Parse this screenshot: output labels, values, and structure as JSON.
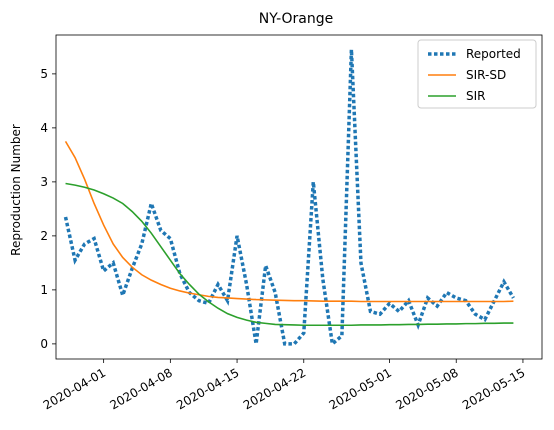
{
  "chart_data": {
    "type": "line",
    "title": "NY-Orange",
    "xlabel": "",
    "ylabel": "Reproduction Number",
    "x_start": "2020-03-28",
    "xlim": [
      "2020-03-27",
      "2020-05-17"
    ],
    "ylim": [
      -0.28,
      5.72
    ],
    "grid": false,
    "legend_position": "top-right",
    "x_ticks": [
      "2020-04-01",
      "2020-04-08",
      "2020-04-15",
      "2020-04-22",
      "2020-05-01",
      "2020-05-08",
      "2020-05-15"
    ],
    "y_ticks": [
      0,
      1,
      2,
      3,
      4,
      5
    ],
    "series": [
      {
        "name": "Reported",
        "color": "#1f77b4",
        "style": "dotted",
        "values": [
          2.35,
          1.55,
          1.85,
          1.95,
          1.35,
          1.5,
          0.9,
          1.4,
          1.85,
          2.6,
          2.1,
          1.95,
          1.3,
          0.95,
          0.8,
          0.75,
          1.1,
          0.8,
          2.0,
          1.1,
          0.0,
          1.45,
          0.95,
          0.0,
          0.0,
          0.2,
          3.0,
          1.2,
          0.0,
          0.15,
          5.45,
          1.5,
          0.6,
          0.55,
          0.75,
          0.6,
          0.8,
          0.35,
          0.85,
          0.7,
          0.95,
          0.85,
          0.8,
          0.55,
          0.45,
          0.8,
          1.15,
          0.85
        ]
      },
      {
        "name": "SIR-SD",
        "color": "#ff7f0e",
        "style": "solid",
        "values": [
          3.75,
          3.45,
          3.05,
          2.6,
          2.2,
          1.85,
          1.6,
          1.42,
          1.28,
          1.18,
          1.1,
          1.03,
          0.98,
          0.94,
          0.91,
          0.88,
          0.86,
          0.85,
          0.84,
          0.83,
          0.82,
          0.815,
          0.81,
          0.805,
          0.8,
          0.8,
          0.795,
          0.79,
          0.79,
          0.79,
          0.79,
          0.785,
          0.785,
          0.785,
          0.785,
          0.785,
          0.785,
          0.785,
          0.785,
          0.785,
          0.785,
          0.785,
          0.785,
          0.785,
          0.785,
          0.785,
          0.785,
          0.79
        ]
      },
      {
        "name": "SIR",
        "color": "#2ca02c",
        "style": "solid",
        "values": [
          2.97,
          2.94,
          2.9,
          2.85,
          2.78,
          2.7,
          2.6,
          2.45,
          2.27,
          2.05,
          1.8,
          1.55,
          1.3,
          1.1,
          0.92,
          0.78,
          0.66,
          0.56,
          0.49,
          0.44,
          0.4,
          0.38,
          0.36,
          0.355,
          0.35,
          0.345,
          0.345,
          0.345,
          0.345,
          0.345,
          0.345,
          0.35,
          0.35,
          0.35,
          0.355,
          0.355,
          0.36,
          0.36,
          0.365,
          0.365,
          0.37,
          0.37,
          0.375,
          0.375,
          0.38,
          0.38,
          0.385,
          0.385
        ]
      }
    ]
  }
}
